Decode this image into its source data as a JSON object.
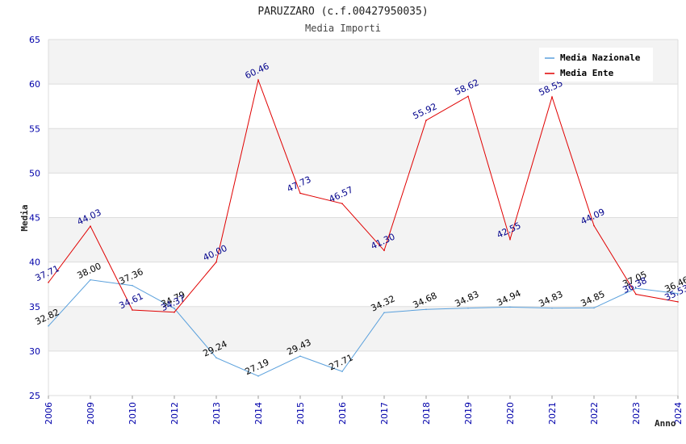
{
  "chart_data": {
    "type": "line",
    "title": "PARUZZARO (c.f.00427950035)",
    "subtitle": "Media Importi",
    "xlabel": "Anno",
    "ylabel": "Media",
    "ylim": [
      25,
      65
    ],
    "yticks": [
      25,
      30,
      35,
      40,
      45,
      50,
      55,
      60,
      65
    ],
    "grid": true,
    "legend_position": "top-right",
    "categories": [
      "2006",
      "2009",
      "2010",
      "2012",
      "2013",
      "2014",
      "2015",
      "2016",
      "2017",
      "2018",
      "2019",
      "2020",
      "2021",
      "2022",
      "2023",
      "2024"
    ],
    "series": [
      {
        "name": "Media Nazionale",
        "color": "#5aa0dc",
        "label_color": "#000000",
        "values": [
          32.82,
          38.0,
          37.36,
          34.79,
          29.24,
          27.19,
          29.43,
          27.71,
          34.32,
          34.68,
          34.83,
          34.94,
          34.83,
          34.85,
          37.05,
          36.46
        ],
        "labels": [
          "32.82",
          "38.00",
          "37.36",
          "34.79",
          "29.24",
          "27.19",
          "29.43",
          "27.71",
          "34.32",
          "34.68",
          "34.83",
          "34.94",
          "34.83",
          "34.85",
          "37.05",
          "36.46"
        ]
      },
      {
        "name": "Media Ente",
        "color": "#e00000",
        "label_color": "#00008b",
        "values": [
          37.71,
          44.03,
          34.61,
          34.37,
          40.0,
          60.46,
          47.73,
          46.57,
          41.3,
          55.92,
          58.62,
          42.55,
          58.55,
          44.09,
          36.38,
          35.53
        ],
        "labels": [
          "37.71",
          "44.03",
          "34.61",
          "34.37",
          "40.00",
          "60.46",
          "47.73",
          "46.57",
          "41.30",
          "55.92",
          "58.62",
          "42.55",
          "58.55",
          "44.09",
          "36.38",
          "35.53"
        ]
      }
    ]
  }
}
